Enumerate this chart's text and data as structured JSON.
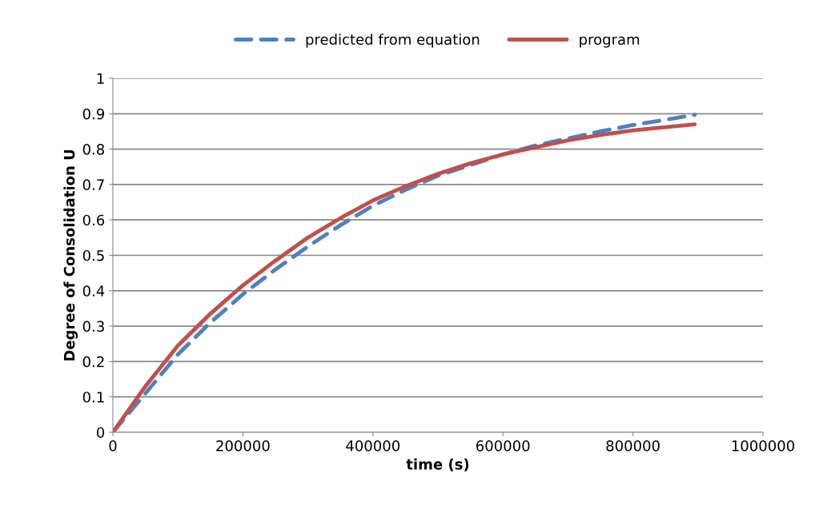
{
  "chart_data": {
    "type": "line",
    "xlabel": "time (s)",
    "ylabel": "Degree of Consolidation U",
    "x": [
      0,
      50000,
      100000,
      150000,
      200000,
      250000,
      300000,
      350000,
      400000,
      450000,
      500000,
      550000,
      600000,
      650000,
      700000,
      750000,
      800000,
      850000,
      895000
    ],
    "series": [
      {
        "name": "predicted from equation",
        "color": "#4f81bd",
        "line_style": "dashed",
        "values": [
          0,
          0.11,
          0.22,
          0.31,
          0.39,
          0.46,
          0.525,
          0.585,
          0.64,
          0.685,
          0.725,
          0.755,
          0.785,
          0.81,
          0.83,
          0.85,
          0.868,
          0.883,
          0.897
        ]
      },
      {
        "name": "program",
        "color": "#c0504d",
        "line_style": "solid",
        "values": [
          0,
          0.13,
          0.245,
          0.335,
          0.415,
          0.485,
          0.55,
          0.605,
          0.655,
          0.695,
          0.73,
          0.76,
          0.785,
          0.805,
          0.825,
          0.84,
          0.853,
          0.862,
          0.87
        ]
      }
    ],
    "xlim": [
      0,
      1000000
    ],
    "xticks": [
      0,
      200000,
      400000,
      600000,
      800000,
      1000000
    ],
    "ylim": [
      0,
      1
    ],
    "yticks": [
      0,
      0.1,
      0.2,
      0.3,
      0.4,
      0.5,
      0.6,
      0.7,
      0.8,
      0.9,
      1
    ],
    "grid": "y",
    "legend": "top",
    "marker": "none"
  }
}
